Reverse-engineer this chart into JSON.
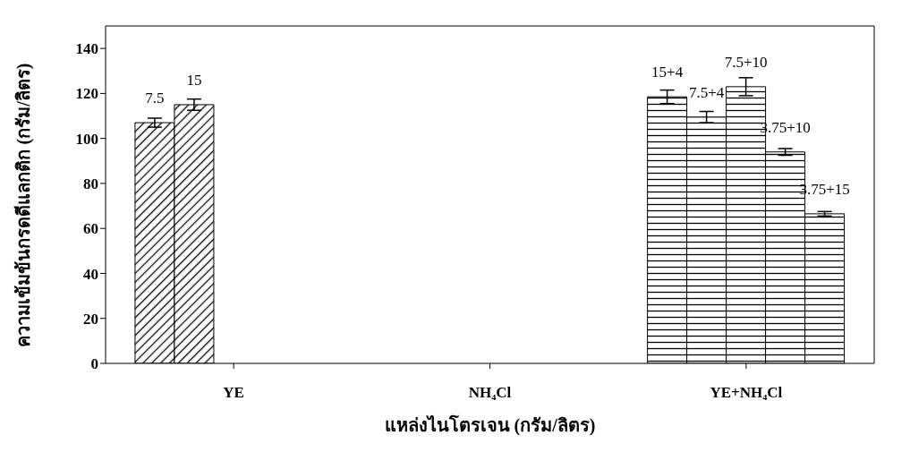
{
  "chart_data": {
    "type": "bar",
    "xlabel": "แหล่งไนโตรเจน (กรัม/ลิตร)",
    "ylabel": "ความเข้มข้นกรดดีแลกติก (กรัม/ลิตร)",
    "categories": [
      "YE",
      "NH₄Cl",
      "YE+NH₄Cl"
    ],
    "series": [
      {
        "name": "7.5",
        "color": "#000000",
        "values": [
          107,
          null,
          null
        ],
        "errors": [
          2,
          null,
          null
        ]
      },
      {
        "name": "15",
        "color": "#000000",
        "values": [
          115,
          null,
          null
        ],
        "errors": [
          2.5,
          null,
          null
        ]
      },
      {
        "name": "15+4",
        "color": "#000000",
        "values": [
          null,
          null,
          118.5
        ],
        "errors": [
          null,
          null,
          3
        ]
      },
      {
        "name": "7.5+4",
        "color": "#000000",
        "values": [
          null,
          null,
          109.5
        ],
        "errors": [
          null,
          null,
          2.5
        ]
      },
      {
        "name": "7.5+10",
        "color": "#000000",
        "values": [
          null,
          null,
          123
        ],
        "errors": [
          null,
          null,
          4
        ]
      },
      {
        "name": "3.75+10",
        "color": "#000000",
        "values": [
          null,
          null,
          94
        ],
        "errors": [
          null,
          null,
          1.5
        ]
      },
      {
        "name": "3.75+15",
        "color": "#000000",
        "values": [
          null,
          null,
          66.5
        ],
        "errors": [
          null,
          null,
          1
        ]
      }
    ],
    "ylim": [
      0,
      150
    ],
    "yticks": [
      0,
      20,
      40,
      60,
      80,
      100,
      120,
      140
    ],
    "grid": false,
    "legend": false
  }
}
